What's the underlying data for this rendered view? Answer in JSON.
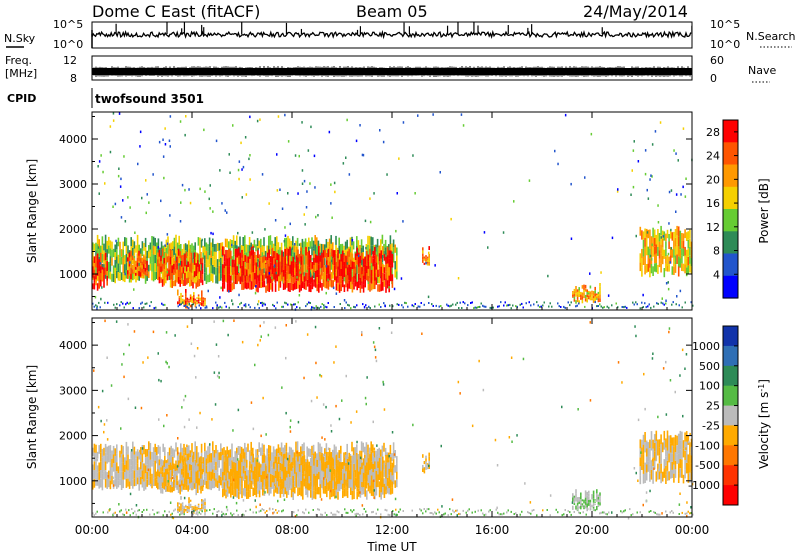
{
  "header": {
    "station": "Dome C East (fitACF)",
    "beam": "Beam 05",
    "date": "24/May/2014"
  },
  "noise_panel": {
    "left_label": "N.Sky",
    "right_label": "N.Search",
    "ticks_left": [
      "10^5",
      "10^0"
    ],
    "ticks_right": [
      "10^5",
      "10^0"
    ]
  },
  "freq_panel": {
    "left_label_line1": "Freq.",
    "left_label_line2": "[MHz]",
    "right_label": "Nave",
    "ticks_left": [
      "12",
      "8"
    ],
    "ticks_right": [
      "60",
      "0"
    ]
  },
  "cpid": {
    "label": "CPID",
    "value": "twofsound 3501"
  },
  "colors": {
    "power_scale": [
      "#0000ff",
      "#2255cc",
      "#2e8b57",
      "#66cc33",
      "#f5d000",
      "#ff9900",
      "#ff5500",
      "#ff0000"
    ],
    "velocity_scale": [
      "#1133aa",
      "#2f6fb5",
      "#2e8b57",
      "#55bb44",
      "#bbbbbb",
      "#ffaa00",
      "#ff7700",
      "#ff3300",
      "#ff0000"
    ]
  },
  "chart_data": [
    {
      "type": "heatmap",
      "quantity": "power",
      "ylabel": "Slant Range [km]",
      "yticks": [
        1000,
        2000,
        3000,
        4000
      ],
      "ylim": [
        200,
        4600
      ],
      "xlim": [
        0,
        24
      ],
      "colorbar_label": "Power [dB]",
      "colorbar_ticks": [
        "4",
        "8",
        "12",
        "16",
        "20",
        "24",
        "28"
      ],
      "colorbar_range": [
        0,
        30
      ],
      "echo_regions": [
        {
          "t0": 0.0,
          "t1": 12.2,
          "r0": 850,
          "r1": 1750,
          "level": 0.45
        },
        {
          "t0": 0.0,
          "t1": 0.6,
          "r0": 700,
          "r1": 1400,
          "level": 0.95
        },
        {
          "t0": 1.4,
          "t1": 2.2,
          "r0": 900,
          "r1": 1400,
          "level": 0.85
        },
        {
          "t0": 2.6,
          "t1": 4.4,
          "r0": 750,
          "r1": 1450,
          "level": 0.8
        },
        {
          "t0": 5.2,
          "t1": 12.0,
          "r0": 650,
          "r1": 1500,
          "level": 0.95
        },
        {
          "t0": 3.4,
          "t1": 4.5,
          "r0": 300,
          "r1": 550,
          "level": 0.75
        },
        {
          "t0": 13.2,
          "t1": 13.5,
          "r0": 1200,
          "r1": 1500,
          "level": 0.75
        },
        {
          "t0": 19.2,
          "t1": 20.3,
          "r0": 400,
          "r1": 700,
          "level": 0.7
        },
        {
          "t0": 21.9,
          "t1": 24.0,
          "r0": 1000,
          "r1": 2000,
          "level": 0.6
        }
      ]
    },
    {
      "type": "heatmap",
      "quantity": "velocity",
      "ylabel": "Slant Range [km]",
      "yticks": [
        1000,
        2000,
        3000,
        4000
      ],
      "ylim": [
        200,
        4600
      ],
      "xlim": [
        0,
        24
      ],
      "xlabel": "Time UT",
      "xticks": [
        "00:00",
        "04:00",
        "08:00",
        "12:00",
        "16:00",
        "20:00",
        "00:00"
      ],
      "colorbar_label": "Velocity [m s",
      "colorbar_label_sup": "-1",
      "colorbar_label_end": "]",
      "colorbar_ticks": [
        "1000",
        "500",
        "100",
        "25",
        "-25",
        "-100",
        "-500",
        "-1000"
      ],
      "colorbar_range": [
        -1200,
        1200
      ],
      "echo_regions": [
        {
          "t0": 0.0,
          "t1": 12.2,
          "r0": 850,
          "r1": 1750,
          "level": -100
        },
        {
          "t0": 2.6,
          "t1": 4.4,
          "r0": 750,
          "r1": 1450,
          "level": -150
        },
        {
          "t0": 5.2,
          "t1": 12.0,
          "r0": 650,
          "r1": 1500,
          "level": -200
        },
        {
          "t0": 3.4,
          "t1": 4.5,
          "r0": 300,
          "r1": 550,
          "level": -150
        },
        {
          "t0": 13.2,
          "t1": 13.5,
          "r0": 1200,
          "r1": 1500,
          "level": -100
        },
        {
          "t0": 19.2,
          "t1": 20.3,
          "r0": 400,
          "r1": 700,
          "level": 100
        },
        {
          "t0": 21.9,
          "t1": 24.0,
          "r0": 1000,
          "r1": 2000,
          "level": -150
        }
      ]
    }
  ]
}
